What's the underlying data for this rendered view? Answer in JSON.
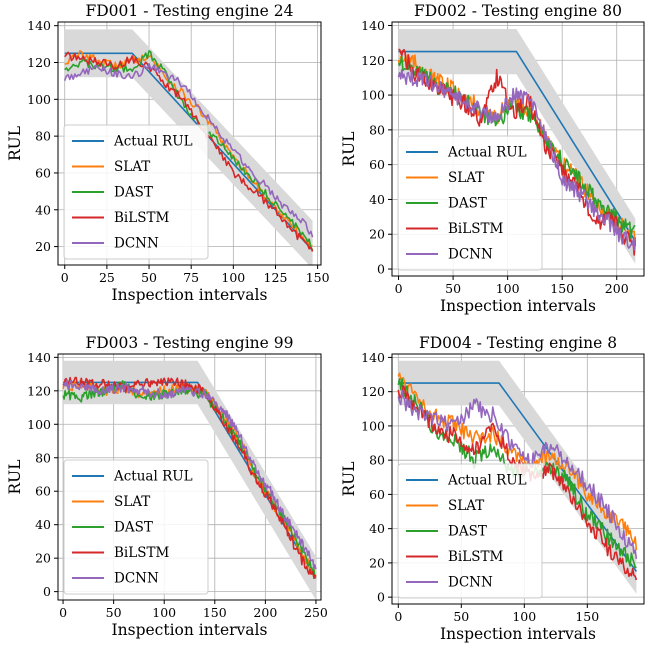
{
  "chart_data": [
    {
      "type": "line",
      "title": "FD001 - Testing engine 24",
      "xlabel": "Inspection intervals",
      "ylabel": "RUL",
      "xlim": [
        -4,
        152
      ],
      "ylim": [
        10,
        142
      ],
      "xticks": [
        0,
        25,
        50,
        75,
        100,
        125,
        150
      ],
      "yticks": [
        20,
        40,
        60,
        80,
        100,
        120,
        140
      ],
      "grid": true,
      "legend_position": "lower-left",
      "band": {
        "x": [
          0,
          40,
          147
        ],
        "lower": [
          112,
          112,
          8
        ],
        "upper": [
          138,
          138,
          34
        ]
      },
      "series": [
        {
          "name": "Actual RUL",
          "color": "#1f77b4",
          "x": [
            0,
            40,
            147
          ],
          "y": [
            125,
            125,
            18
          ]
        },
        {
          "name": "SLAT",
          "color": "#ff7f0e",
          "x": [
            0,
            10,
            20,
            30,
            40,
            50,
            60,
            70,
            80,
            90,
            100,
            110,
            120,
            130,
            140,
            147
          ],
          "y": [
            120,
            125,
            121,
            118,
            121,
            124,
            112,
            103,
            94,
            82,
            68,
            58,
            46,
            36,
            26,
            20
          ]
        },
        {
          "name": "DAST",
          "color": "#2ca02c",
          "x": [
            0,
            10,
            20,
            30,
            40,
            50,
            60,
            70,
            80,
            90,
            100,
            110,
            120,
            130,
            140,
            147
          ],
          "y": [
            117,
            120,
            118,
            117,
            116,
            125,
            114,
            98,
            86,
            78,
            68,
            58,
            48,
            38,
            28,
            20
          ]
        },
        {
          "name": "BiLSTM",
          "color": "#d62728",
          "x": [
            0,
            10,
            20,
            30,
            40,
            50,
            60,
            70,
            80,
            90,
            100,
            110,
            120,
            130,
            140,
            147
          ],
          "y": [
            124,
            122,
            120,
            118,
            122,
            118,
            108,
            100,
            86,
            74,
            60,
            52,
            44,
            34,
            24,
            17
          ]
        },
        {
          "name": "DCNN",
          "color": "#9467bd",
          "x": [
            0,
            10,
            20,
            30,
            40,
            50,
            60,
            70,
            80,
            90,
            100,
            110,
            120,
            130,
            140,
            147
          ],
          "y": [
            111,
            115,
            117,
            114,
            112,
            118,
            114,
            108,
            96,
            84,
            72,
            62,
            52,
            42,
            34,
            27
          ]
        }
      ]
    },
    {
      "type": "line",
      "title": "FD002 - Testing engine 80",
      "xlabel": "Inspection intervals",
      "ylabel": "RUL",
      "xlim": [
        -6,
        225
      ],
      "ylim": [
        -4,
        142
      ],
      "xticks": [
        0,
        50,
        100,
        150,
        200
      ],
      "yticks": [
        0,
        20,
        40,
        60,
        80,
        100,
        120,
        140
      ],
      "grid": true,
      "legend_position": "lower-left",
      "band": {
        "x": [
          0,
          108,
          217
        ],
        "lower": [
          112,
          112,
          3
        ],
        "upper": [
          138,
          138,
          29
        ]
      },
      "series": [
        {
          "name": "Actual RUL",
          "color": "#1f77b4",
          "x": [
            0,
            108,
            217
          ],
          "y": [
            125,
            125,
            16
          ]
        },
        {
          "name": "SLAT",
          "color": "#ff7f0e",
          "x": [
            0,
            15,
            30,
            45,
            60,
            75,
            90,
            105,
            120,
            135,
            150,
            165,
            180,
            195,
            205,
            217
          ],
          "y": [
            122,
            118,
            110,
            105,
            100,
            92,
            88,
            96,
            92,
            76,
            60,
            52,
            38,
            30,
            24,
            18
          ]
        },
        {
          "name": "DAST",
          "color": "#2ca02c",
          "x": [
            0,
            15,
            30,
            45,
            60,
            75,
            90,
            105,
            120,
            135,
            150,
            165,
            180,
            195,
            205,
            217
          ],
          "y": [
            120,
            116,
            108,
            102,
            98,
            90,
            84,
            94,
            88,
            74,
            62,
            52,
            40,
            32,
            26,
            20
          ]
        },
        {
          "name": "BiLSTM",
          "color": "#d62728",
          "x": [
            0,
            15,
            30,
            45,
            60,
            75,
            90,
            105,
            120,
            135,
            150,
            165,
            180,
            195,
            205,
            217
          ],
          "y": [
            128,
            112,
            106,
            100,
            96,
            84,
            110,
            90,
            96,
            70,
            56,
            46,
            26,
            30,
            20,
            12
          ]
        },
        {
          "name": "DCNN",
          "color": "#9467bd",
          "x": [
            0,
            15,
            30,
            45,
            60,
            75,
            90,
            105,
            120,
            135,
            150,
            165,
            180,
            195,
            205,
            217
          ],
          "y": [
            112,
            110,
            106,
            100,
            98,
            90,
            86,
            100,
            96,
            78,
            50,
            44,
            34,
            26,
            18,
            14
          ]
        }
      ]
    },
    {
      "type": "line",
      "title": "FD003 - Testing engine 99",
      "xlabel": "Inspection intervals",
      "ylabel": "RUL",
      "xlim": [
        -5,
        255
      ],
      "ylim": [
        -5,
        142
      ],
      "xticks": [
        0,
        50,
        100,
        150,
        200,
        250
      ],
      "yticks": [
        0,
        20,
        40,
        60,
        80,
        100,
        120,
        140
      ],
      "grid": true,
      "legend_position": "lower-left",
      "band": {
        "x": [
          0,
          133,
          250
        ],
        "lower": [
          112,
          112,
          -5
        ],
        "upper": [
          138,
          138,
          21
        ]
      },
      "series": [
        {
          "name": "Actual RUL",
          "color": "#1f77b4",
          "x": [
            0,
            133,
            250
          ],
          "y": [
            125,
            125,
            8
          ]
        },
        {
          "name": "SLAT",
          "color": "#ff7f0e",
          "x": [
            0,
            20,
            40,
            60,
            80,
            100,
            120,
            140,
            160,
            175,
            190,
            205,
            220,
            235,
            250
          ],
          "y": [
            122,
            124,
            120,
            122,
            118,
            120,
            122,
            120,
            104,
            90,
            70,
            55,
            40,
            25,
            9
          ]
        },
        {
          "name": "DAST",
          "color": "#2ca02c",
          "x": [
            0,
            20,
            40,
            60,
            80,
            100,
            120,
            140,
            160,
            175,
            190,
            205,
            220,
            235,
            250
          ],
          "y": [
            118,
            116,
            120,
            123,
            116,
            118,
            120,
            118,
            102,
            88,
            72,
            56,
            42,
            26,
            10
          ]
        },
        {
          "name": "BiLSTM",
          "color": "#d62728",
          "x": [
            0,
            20,
            40,
            60,
            80,
            100,
            120,
            140,
            160,
            175,
            190,
            205,
            220,
            235,
            250
          ],
          "y": [
            125,
            125,
            124,
            122,
            124,
            126,
            124,
            120,
            100,
            86,
            68,
            54,
            38,
            20,
            7
          ]
        },
        {
          "name": "DCNN",
          "color": "#9467bd",
          "x": [
            0,
            20,
            40,
            60,
            80,
            100,
            120,
            140,
            160,
            175,
            190,
            205,
            220,
            235,
            250
          ],
          "y": [
            124,
            122,
            120,
            122,
            120,
            118,
            120,
            118,
            108,
            92,
            74,
            60,
            44,
            30,
            14
          ]
        }
      ]
    },
    {
      "type": "line",
      "title": "FD004 - Testing engine 8",
      "xlabel": "Inspection intervals",
      "ylabel": "RUL",
      "xlim": [
        -5,
        195
      ],
      "ylim": [
        -4,
        142
      ],
      "xticks": [
        0,
        50,
        100,
        150
      ],
      "yticks": [
        0,
        20,
        40,
        60,
        80,
        100,
        120,
        140
      ],
      "grid": true,
      "legend_position": "lower-left",
      "band": {
        "x": [
          0,
          80,
          189
        ],
        "lower": [
          112,
          112,
          2
        ],
        "upper": [
          138,
          138,
          28
        ]
      },
      "series": [
        {
          "name": "Actual RUL",
          "color": "#1f77b4",
          "x": [
            0,
            80,
            189
          ],
          "y": [
            125,
            125,
            15
          ]
        },
        {
          "name": "SLAT",
          "color": "#ff7f0e",
          "x": [
            0,
            15,
            30,
            45,
            60,
            75,
            90,
            105,
            120,
            135,
            150,
            165,
            180,
            189
          ],
          "y": [
            130,
            118,
            105,
            100,
            92,
            95,
            86,
            78,
            82,
            76,
            60,
            48,
            40,
            32
          ]
        },
        {
          "name": "DAST",
          "color": "#2ca02c",
          "x": [
            0,
            15,
            30,
            45,
            60,
            75,
            90,
            105,
            120,
            135,
            150,
            165,
            180,
            189
          ],
          "y": [
            125,
            112,
            96,
            92,
            80,
            88,
            74,
            72,
            76,
            68,
            48,
            36,
            24,
            22
          ]
        },
        {
          "name": "BiLSTM",
          "color": "#d62728",
          "x": [
            0,
            15,
            30,
            45,
            60,
            75,
            90,
            105,
            120,
            135,
            150,
            165,
            180,
            189
          ],
          "y": [
            122,
            110,
            98,
            94,
            84,
            100,
            80,
            70,
            74,
            62,
            44,
            30,
            18,
            14
          ]
        },
        {
          "name": "DCNN",
          "color": "#9467bd",
          "x": [
            0,
            15,
            30,
            45,
            60,
            75,
            90,
            105,
            120,
            135,
            150,
            165,
            180,
            189
          ],
          "y": [
            118,
            108,
            104,
            100,
            112,
            106,
            90,
            80,
            88,
            80,
            66,
            52,
            34,
            26
          ]
        }
      ]
    }
  ]
}
